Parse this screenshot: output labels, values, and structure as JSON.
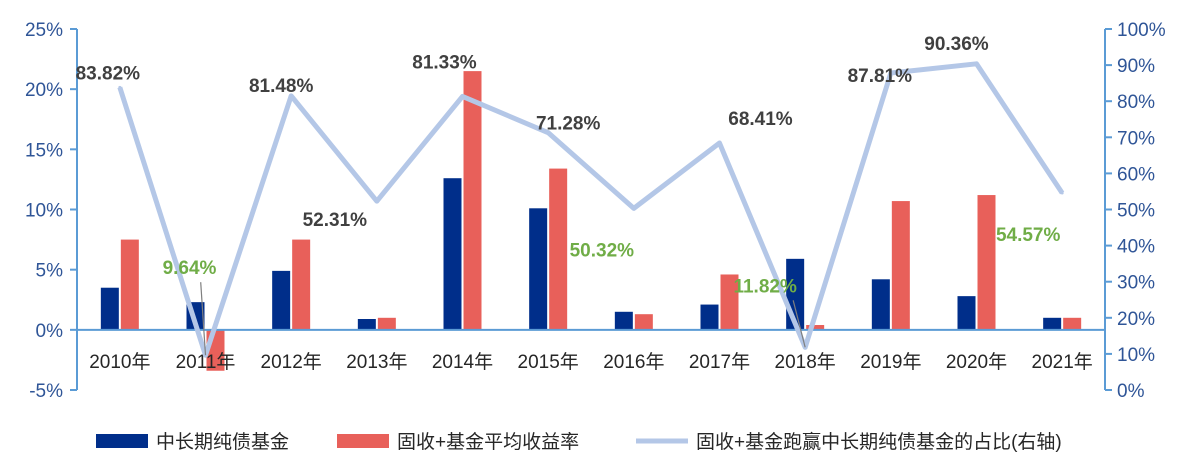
{
  "chart_data": {
    "type": "bar",
    "categories": [
      "2010年",
      "2011年",
      "2012年",
      "2013年",
      "2014年",
      "2015年",
      "2016年",
      "2017年",
      "2018年",
      "2019年",
      "2020年",
      "2021年"
    ],
    "series": [
      {
        "name": "中长期纯债基金",
        "type": "bar",
        "axis": "left",
        "color": "#002E8A",
        "values": [
          3.5,
          2.3,
          4.9,
          0.9,
          12.6,
          10.1,
          1.5,
          2.1,
          5.9,
          4.2,
          2.8,
          1.0
        ]
      },
      {
        "name": "固收+基金平均收益率",
        "type": "bar",
        "axis": "left",
        "color": "#E8605A",
        "values": [
          7.5,
          -3.4,
          7.5,
          1.0,
          21.5,
          13.4,
          1.3,
          4.6,
          0.4,
          10.7,
          11.2,
          1.0
        ]
      },
      {
        "name": "固收+基金跑赢中长期纯债基金的占比(右轴)",
        "type": "line",
        "axis": "right",
        "color": "#B4C7E7",
        "values": [
          83.82,
          9.64,
          81.48,
          52.31,
          81.33,
          71.28,
          50.32,
          68.41,
          11.82,
          87.81,
          90.36,
          54.57
        ]
      }
    ],
    "data_labels": [
      "83.82%",
      "9.64%",
      "81.48%",
      "52.31%",
      "81.33%",
      "71.28%",
      "50.32%",
      "68.41%",
      "11.82%",
      "87.81%",
      "90.36%",
      "54.57%"
    ],
    "label_colors": [
      "#404040",
      "#70AD47",
      "#404040",
      "#404040",
      "#404040",
      "#404040",
      "#70AD47",
      "#404040",
      "#70AD47",
      "#404040",
      "#404040",
      "#70AD47"
    ],
    "left_axis": {
      "min": -5,
      "max": 25,
      "step": 5,
      "ticks": [
        "-5%",
        "0%",
        "5%",
        "10%",
        "15%",
        "20%",
        "25%"
      ]
    },
    "right_axis": {
      "min": 0,
      "max": 100,
      "step": 10,
      "ticks": [
        "0%",
        "10%",
        "20%",
        "30%",
        "40%",
        "50%",
        "60%",
        "70%",
        "80%",
        "90%",
        "100%"
      ]
    },
    "legend_position": "bottom",
    "grid": false,
    "axis_color": "#5B9BD5"
  }
}
